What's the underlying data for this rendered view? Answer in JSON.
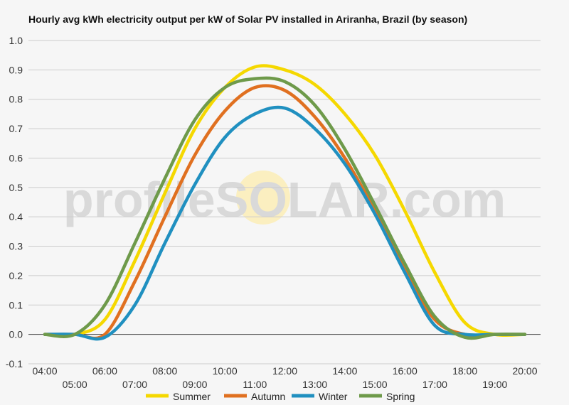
{
  "chart_data": {
    "type": "line",
    "title": "Hourly avg kWh electricity output per kW of Solar PV installed in Ariranha, Brazil (by season)",
    "xlabel": "",
    "ylabel": "",
    "ylim": [
      -0.1,
      1.0
    ],
    "yticks": [
      "1.0",
      "0.9",
      "0.8",
      "0.7",
      "0.6",
      "0.5",
      "0.4",
      "0.3",
      "0.2",
      "0.1",
      "0.0",
      "-0.1"
    ],
    "categories": [
      "04:00",
      "05:00",
      "06:00",
      "07:00",
      "08:00",
      "09:00",
      "10:00",
      "11:00",
      "12:00",
      "13:00",
      "14:00",
      "15:00",
      "16:00",
      "17:00",
      "18:00",
      "19:00",
      "20:00"
    ],
    "grid": true,
    "legend_position": "bottom",
    "series": [
      {
        "name": "Summer",
        "color": "#f5d800",
        "values": [
          0.0,
          0.0,
          0.05,
          0.25,
          0.48,
          0.7,
          0.84,
          0.91,
          0.9,
          0.85,
          0.75,
          0.61,
          0.42,
          0.21,
          0.04,
          0.0,
          0.0
        ]
      },
      {
        "name": "Autumn",
        "color": "#e07020",
        "values": [
          0.0,
          0.0,
          0.0,
          0.18,
          0.4,
          0.61,
          0.76,
          0.84,
          0.83,
          0.74,
          0.6,
          0.42,
          0.22,
          0.05,
          0.0,
          0.0,
          0.0
        ]
      },
      {
        "name": "Winter",
        "color": "#2090c0",
        "values": [
          0.0,
          0.0,
          -0.01,
          0.1,
          0.31,
          0.51,
          0.67,
          0.75,
          0.77,
          0.7,
          0.58,
          0.41,
          0.21,
          0.03,
          0.0,
          0.0,
          0.0
        ]
      },
      {
        "name": "Spring",
        "color": "#6e9a4a",
        "values": [
          0.0,
          0.0,
          0.1,
          0.31,
          0.53,
          0.73,
          0.84,
          0.87,
          0.86,
          0.78,
          0.63,
          0.44,
          0.24,
          0.06,
          -0.01,
          0.0,
          0.0
        ]
      }
    ]
  },
  "watermark": {
    "prefix": "profile",
    "middle": "SOLAR",
    "suffix": ".com",
    "color": "#d9d9d9",
    "sun_color": "#fbefc0"
  }
}
